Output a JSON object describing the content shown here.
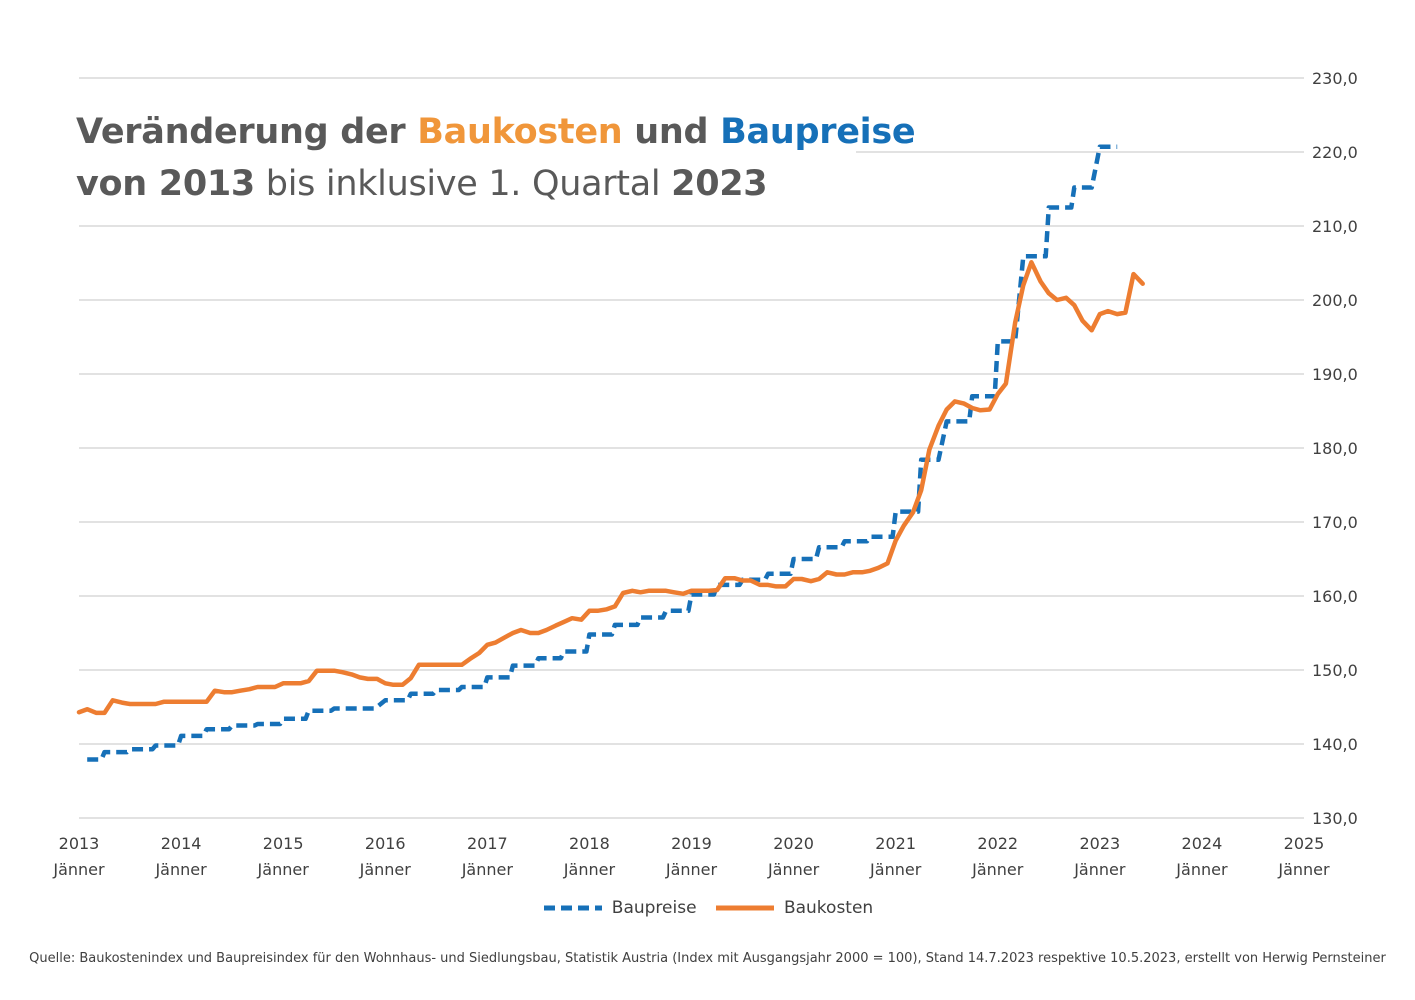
{
  "title": {
    "line1": {
      "part1": "Veränderung der ",
      "part2": "Baukosten",
      "part3": " und ",
      "part4": "Baupreise"
    },
    "line2": {
      "part1": "von ",
      "part2": "2013",
      "part3": " bis inklusive 1. Quartal ",
      "part4": "2023"
    }
  },
  "legend": {
    "baupreise": "Baupreise",
    "baukosten": "Baukosten"
  },
  "source": "Quelle: Baukostenindex und Baupreisindex für den Wohnhaus- und Siedlungsbau, Statistik Austria (Index mit Ausgangsjahr 2000 = 100), Stand 14.7.2023 respektive 10.5.2023, erstellt von Herwig Pernsteiner",
  "colors": {
    "baupreise": "#1670b8",
    "baukosten": "#ed7d31",
    "grid": "#d9d9d9",
    "text": "#595959"
  },
  "chart_data": {
    "type": "line",
    "x_unit": "year",
    "xlim": [
      2013,
      2025
    ],
    "ylim": [
      130,
      230
    ],
    "yticks": [
      "130,0",
      "140,0",
      "150,0",
      "160,0",
      "170,0",
      "180,0",
      "190,0",
      "200,0",
      "210,0",
      "220,0",
      "230,0"
    ],
    "xticks": [
      {
        "year": "2013",
        "month": "Jänner"
      },
      {
        "year": "2014",
        "month": "Jänner"
      },
      {
        "year": "2015",
        "month": "Jänner"
      },
      {
        "year": "2016",
        "month": "Jänner"
      },
      {
        "year": "2017",
        "month": "Jänner"
      },
      {
        "year": "2018",
        "month": "Jänner"
      },
      {
        "year": "2019",
        "month": "Jänner"
      },
      {
        "year": "2020",
        "month": "Jänner"
      },
      {
        "year": "2021",
        "month": "Jänner"
      },
      {
        "year": "2022",
        "month": "Jänner"
      },
      {
        "year": "2023",
        "month": "Jänner"
      },
      {
        "year": "2024",
        "month": "Jänner"
      },
      {
        "year": "2025",
        "month": "Jänner"
      }
    ],
    "grid": true,
    "y_axis_side": "right",
    "legend_position": "bottom",
    "series": [
      {
        "name": "Baupreise",
        "style": "dashed",
        "color": "#1670b8",
        "points": [
          [
            2013.08,
            137.9
          ],
          [
            2013.22,
            137.9
          ],
          [
            2013.25,
            138.9
          ],
          [
            2013.47,
            138.9
          ],
          [
            2013.5,
            139.3
          ],
          [
            2013.72,
            139.3
          ],
          [
            2013.75,
            139.8
          ],
          [
            2013.97,
            139.8
          ],
          [
            2014.0,
            141.1
          ],
          [
            2014.22,
            141.1
          ],
          [
            2014.25,
            142.0
          ],
          [
            2014.47,
            142.0
          ],
          [
            2014.5,
            142.5
          ],
          [
            2014.72,
            142.5
          ],
          [
            2014.75,
            142.7
          ],
          [
            2014.97,
            142.7
          ],
          [
            2015.0,
            143.4
          ],
          [
            2015.22,
            143.4
          ],
          [
            2015.25,
            144.5
          ],
          [
            2015.47,
            144.5
          ],
          [
            2015.5,
            144.8
          ],
          [
            2015.72,
            144.8
          ],
          [
            2015.75,
            144.8
          ],
          [
            2015.9,
            144.8
          ],
          [
            2016.0,
            145.9
          ],
          [
            2016.22,
            145.9
          ],
          [
            2016.25,
            146.8
          ],
          [
            2016.47,
            146.8
          ],
          [
            2016.5,
            147.3
          ],
          [
            2016.72,
            147.3
          ],
          [
            2016.75,
            147.7
          ],
          [
            2016.97,
            147.7
          ],
          [
            2017.0,
            149.0
          ],
          [
            2017.22,
            149.0
          ],
          [
            2017.25,
            150.6
          ],
          [
            2017.47,
            150.6
          ],
          [
            2017.5,
            151.6
          ],
          [
            2017.72,
            151.6
          ],
          [
            2017.75,
            152.5
          ],
          [
            2017.97,
            152.5
          ],
          [
            2018.0,
            154.8
          ],
          [
            2018.22,
            154.8
          ],
          [
            2018.25,
            156.1
          ],
          [
            2018.47,
            156.1
          ],
          [
            2018.5,
            157.1
          ],
          [
            2018.72,
            157.1
          ],
          [
            2018.75,
            158.0
          ],
          [
            2018.97,
            158.0
          ],
          [
            2019.0,
            160.2
          ],
          [
            2019.22,
            160.2
          ],
          [
            2019.25,
            161.5
          ],
          [
            2019.47,
            161.5
          ],
          [
            2019.5,
            162.2
          ],
          [
            2019.72,
            162.2
          ],
          [
            2019.75,
            163.0
          ],
          [
            2019.97,
            163.0
          ],
          [
            2020.0,
            165.0
          ],
          [
            2020.22,
            165.0
          ],
          [
            2020.25,
            166.6
          ],
          [
            2020.47,
            166.6
          ],
          [
            2020.5,
            167.4
          ],
          [
            2020.72,
            167.4
          ],
          [
            2020.75,
            168.0
          ],
          [
            2020.97,
            168.0
          ],
          [
            2021.0,
            171.4
          ],
          [
            2021.22,
            171.4
          ],
          [
            2021.25,
            178.4
          ],
          [
            2021.42,
            178.4
          ],
          [
            2021.5,
            183.6
          ],
          [
            2021.72,
            183.6
          ],
          [
            2021.75,
            187.0
          ],
          [
            2021.97,
            187.0
          ],
          [
            2022.0,
            194.4
          ],
          [
            2022.17,
            194.4
          ],
          [
            2022.25,
            205.9
          ],
          [
            2022.47,
            205.9
          ],
          [
            2022.5,
            212.5
          ],
          [
            2022.72,
            212.5
          ],
          [
            2022.75,
            215.2
          ],
          [
            2022.92,
            215.2
          ],
          [
            2023.0,
            220.7
          ],
          [
            2023.17,
            220.7
          ]
        ]
      },
      {
        "name": "Baukosten",
        "style": "solid",
        "color": "#ed7d31",
        "points": [
          [
            2013.0,
            144.3
          ],
          [
            2013.08,
            144.7
          ],
          [
            2013.17,
            144.2
          ],
          [
            2013.25,
            144.2
          ],
          [
            2013.33,
            145.9
          ],
          [
            2013.42,
            145.6
          ],
          [
            2013.5,
            145.4
          ],
          [
            2013.58,
            145.4
          ],
          [
            2013.67,
            145.4
          ],
          [
            2013.75,
            145.4
          ],
          [
            2013.83,
            145.7
          ],
          [
            2013.92,
            145.7
          ],
          [
            2014.0,
            145.7
          ],
          [
            2014.08,
            145.7
          ],
          [
            2014.17,
            145.7
          ],
          [
            2014.25,
            145.7
          ],
          [
            2014.33,
            147.2
          ],
          [
            2014.42,
            147.0
          ],
          [
            2014.5,
            147.0
          ],
          [
            2014.58,
            147.2
          ],
          [
            2014.67,
            147.4
          ],
          [
            2014.75,
            147.7
          ],
          [
            2014.83,
            147.7
          ],
          [
            2014.92,
            147.7
          ],
          [
            2015.0,
            148.2
          ],
          [
            2015.08,
            148.2
          ],
          [
            2015.17,
            148.2
          ],
          [
            2015.25,
            148.5
          ],
          [
            2015.33,
            149.9
          ],
          [
            2015.42,
            149.9
          ],
          [
            2015.5,
            149.9
          ],
          [
            2015.58,
            149.7
          ],
          [
            2015.67,
            149.4
          ],
          [
            2015.75,
            149.0
          ],
          [
            2015.83,
            148.8
          ],
          [
            2015.92,
            148.8
          ],
          [
            2016.0,
            148.2
          ],
          [
            2016.08,
            148.0
          ],
          [
            2016.17,
            148.0
          ],
          [
            2016.25,
            148.9
          ],
          [
            2016.33,
            150.7
          ],
          [
            2016.42,
            150.7
          ],
          [
            2016.5,
            150.7
          ],
          [
            2016.58,
            150.7
          ],
          [
            2016.67,
            150.7
          ],
          [
            2016.75,
            150.7
          ],
          [
            2016.83,
            151.5
          ],
          [
            2016.92,
            152.3
          ],
          [
            2017.0,
            153.4
          ],
          [
            2017.08,
            153.7
          ],
          [
            2017.17,
            154.4
          ],
          [
            2017.25,
            155.0
          ],
          [
            2017.33,
            155.4
          ],
          [
            2017.42,
            155.0
          ],
          [
            2017.5,
            155.0
          ],
          [
            2017.58,
            155.4
          ],
          [
            2017.67,
            156.0
          ],
          [
            2017.75,
            156.5
          ],
          [
            2017.83,
            157.0
          ],
          [
            2017.92,
            156.8
          ],
          [
            2018.0,
            158.0
          ],
          [
            2018.08,
            158.0
          ],
          [
            2018.17,
            158.2
          ],
          [
            2018.25,
            158.6
          ],
          [
            2018.33,
            160.4
          ],
          [
            2018.42,
            160.7
          ],
          [
            2018.5,
            160.5
          ],
          [
            2018.58,
            160.7
          ],
          [
            2018.67,
            160.7
          ],
          [
            2018.75,
            160.7
          ],
          [
            2018.83,
            160.5
          ],
          [
            2018.92,
            160.3
          ],
          [
            2019.0,
            160.7
          ],
          [
            2019.08,
            160.7
          ],
          [
            2019.17,
            160.7
          ],
          [
            2019.25,
            160.8
          ],
          [
            2019.33,
            162.4
          ],
          [
            2019.42,
            162.4
          ],
          [
            2019.5,
            162.1
          ],
          [
            2019.58,
            162.1
          ],
          [
            2019.67,
            161.5
          ],
          [
            2019.75,
            161.5
          ],
          [
            2019.83,
            161.3
          ],
          [
            2019.92,
            161.3
          ],
          [
            2020.0,
            162.3
          ],
          [
            2020.08,
            162.3
          ],
          [
            2020.17,
            162.0
          ],
          [
            2020.25,
            162.3
          ],
          [
            2020.33,
            163.2
          ],
          [
            2020.42,
            162.9
          ],
          [
            2020.5,
            162.9
          ],
          [
            2020.58,
            163.2
          ],
          [
            2020.67,
            163.2
          ],
          [
            2020.75,
            163.4
          ],
          [
            2020.83,
            163.8
          ],
          [
            2020.92,
            164.4
          ],
          [
            2021.0,
            167.5
          ],
          [
            2021.08,
            169.5
          ],
          [
            2021.17,
            171.3
          ],
          [
            2021.25,
            174.3
          ],
          [
            2021.33,
            179.8
          ],
          [
            2021.42,
            183.0
          ],
          [
            2021.5,
            185.2
          ],
          [
            2021.58,
            186.3
          ],
          [
            2021.67,
            186.0
          ],
          [
            2021.75,
            185.4
          ],
          [
            2021.83,
            185.1
          ],
          [
            2021.92,
            185.2
          ],
          [
            2022.0,
            187.3
          ],
          [
            2022.08,
            188.7
          ],
          [
            2022.17,
            196.9
          ],
          [
            2022.25,
            202.0
          ],
          [
            2022.33,
            205.1
          ],
          [
            2022.42,
            202.5
          ],
          [
            2022.5,
            200.9
          ],
          [
            2022.58,
            200.0
          ],
          [
            2022.67,
            200.3
          ],
          [
            2022.75,
            199.3
          ],
          [
            2022.83,
            197.2
          ],
          [
            2022.92,
            195.9
          ],
          [
            2023.0,
            198.1
          ],
          [
            2023.08,
            198.5
          ],
          [
            2023.17,
            198.1
          ],
          [
            2023.25,
            198.3
          ],
          [
            2023.33,
            203.5
          ],
          [
            2023.42,
            202.2
          ]
        ]
      }
    ]
  }
}
